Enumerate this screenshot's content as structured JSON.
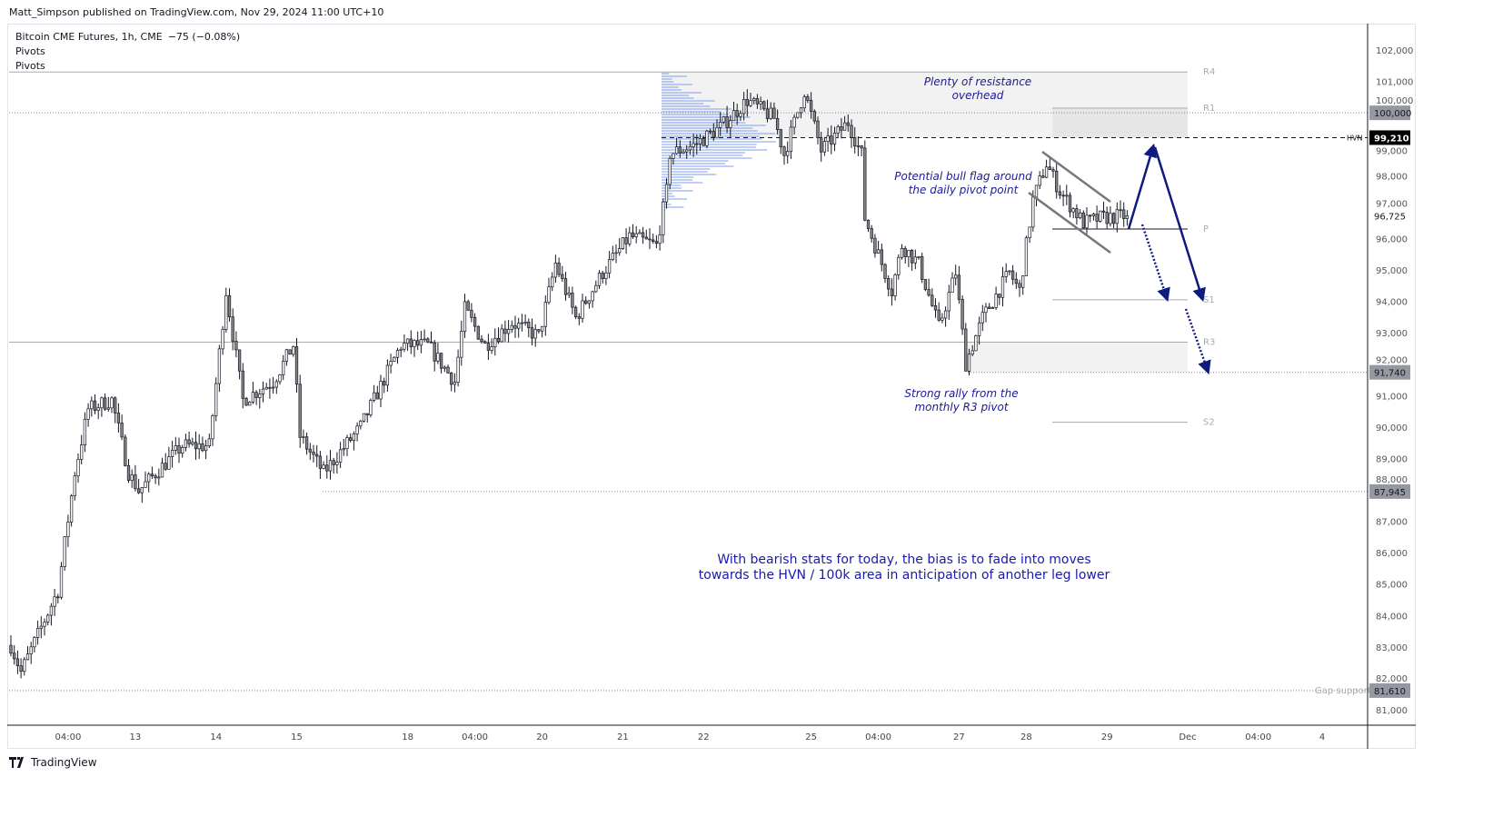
{
  "header": {
    "published": "Matt_Simpson published on TradingView.com, Nov 29, 2024 11:00 UTC+10",
    "symbol": "Bitcoin CME Futures, 1h, CME",
    "change": "−75 (−0.08%)",
    "indicators": [
      "Pivots",
      "Pivots"
    ]
  },
  "footer": {
    "logo_text": "TradingView"
  },
  "colors": {
    "annotation": "#1a1aaa",
    "arrow": "#0d1a80",
    "profile": "#8aa5ee",
    "zone": "#f2f2f2"
  },
  "chart_data": {
    "type": "candlestick",
    "title": "Bitcoin CME Futures, 1h, CME",
    "ylim": [
      80500,
      102700
    ],
    "y_ticks": [
      102000,
      101000,
      100000,
      99000,
      98000,
      97000,
      96000,
      95000,
      94000,
      93000,
      92000,
      91000,
      90000,
      89000,
      88000,
      87000,
      86000,
      85000,
      84000,
      83000,
      82000,
      81000
    ],
    "y_tick_labels": [
      "102,000",
      "101,000",
      "100,000",
      "99,000",
      "98,000",
      "97,000",
      "96,000",
      "95,000",
      "94,000",
      "93,000",
      "92,000",
      "91,000",
      "90,000",
      "89,000",
      "88,000",
      "87,000",
      "86,000",
      "85,000",
      "84,000",
      "83,000",
      "82,000",
      "81,000"
    ],
    "x_ticks": [
      {
        "bar": 17,
        "label": "04:00"
      },
      {
        "bar": 37,
        "label": "13"
      },
      {
        "bar": 61,
        "label": "14"
      },
      {
        "bar": 85,
        "label": "15"
      },
      {
        "bar": 118,
        "label": "18"
      },
      {
        "bar": 138,
        "label": "04:00"
      },
      {
        "bar": 158,
        "label": "20"
      },
      {
        "bar": 182,
        "label": "21"
      },
      {
        "bar": 206,
        "label": "22"
      },
      {
        "bar": 238,
        "label": "25"
      },
      {
        "bar": 258,
        "label": "04:00"
      },
      {
        "bar": 282,
        "label": "27"
      },
      {
        "bar": 302,
        "label": "28"
      },
      {
        "bar": 326,
        "label": "29"
      },
      {
        "bar": 350,
        "label": "Dec"
      },
      {
        "bar": 371,
        "label": "04:00"
      },
      {
        "bar": 390,
        "label": "4"
      }
    ],
    "close_path": [
      [
        0,
        83050
      ],
      [
        3,
        82200
      ],
      [
        14,
        84800
      ],
      [
        19,
        88550
      ],
      [
        23,
        90570
      ],
      [
        30,
        90860
      ],
      [
        35,
        88550
      ],
      [
        38,
        87970
      ],
      [
        51,
        89400
      ],
      [
        59,
        89400
      ],
      [
        64,
        94330
      ],
      [
        69,
        90860
      ],
      [
        78,
        91440
      ],
      [
        84,
        92600
      ],
      [
        86,
        89700
      ],
      [
        93,
        88550
      ],
      [
        104,
        90000
      ],
      [
        116,
        92600
      ],
      [
        124,
        92600
      ],
      [
        132,
        91440
      ],
      [
        135,
        93760
      ],
      [
        141,
        92600
      ],
      [
        149,
        93320
      ],
      [
        157,
        92890
      ],
      [
        162,
        95200
      ],
      [
        168,
        93470
      ],
      [
        176,
        94910
      ],
      [
        184,
        96070
      ],
      [
        192,
        95780
      ],
      [
        195,
        97500
      ],
      [
        196,
        98700
      ],
      [
        203,
        98960
      ],
      [
        211,
        99540
      ],
      [
        219,
        100400
      ],
      [
        227,
        99830
      ],
      [
        230,
        98670
      ],
      [
        236,
        100700
      ],
      [
        241,
        98800
      ],
      [
        249,
        99700
      ],
      [
        253,
        98670
      ],
      [
        254,
        96650
      ],
      [
        262,
        94330
      ],
      [
        265,
        95780
      ],
      [
        270,
        95200
      ],
      [
        276,
        93180
      ],
      [
        281,
        94910
      ],
      [
        284,
        92020
      ],
      [
        289,
        93470
      ],
      [
        297,
        94910
      ],
      [
        300,
        94330
      ],
      [
        304,
        97230
      ],
      [
        308,
        98380
      ],
      [
        312,
        97500
      ],
      [
        319,
        96500
      ],
      [
        324,
        96650
      ],
      [
        332,
        96725
      ]
    ],
    "levels": [
      {
        "name": "R4",
        "price": 101300,
        "label": "R4"
      },
      {
        "name": "R1",
        "price": 100150,
        "label": "R1"
      },
      {
        "name": "round",
        "price": 100000,
        "label": "100,000"
      },
      {
        "name": "HVN",
        "price": 99210,
        "label": "99,210",
        "tag": "HVN"
      },
      {
        "name": "last",
        "price": 96725,
        "label": "96,725"
      },
      {
        "name": "P",
        "price": 96300,
        "label": "P"
      },
      {
        "name": "S1",
        "price": 94050,
        "label": "S1"
      },
      {
        "name": "R3",
        "price": 92700,
        "label": "R3"
      },
      {
        "name": "low",
        "price": 91740,
        "label": "91,740"
      },
      {
        "name": "S2",
        "price": 90150,
        "label": "S2"
      },
      {
        "name": "swing",
        "price": 87945,
        "label": "87,945"
      },
      {
        "name": "gap",
        "price": 81610,
        "label": "81,610",
        "tag": "Gap support"
      }
    ],
    "annotations": {
      "resistance": [
        "Plenty of resistance",
        "overhead"
      ],
      "flag": [
        "Potential bull flag around",
        "the daily pivot point"
      ],
      "rally": [
        "Strong rally from the",
        "monthly R3 pivot"
      ],
      "bias": [
        "With bearish stats for today, the bias is to fade into moves",
        "towards the HVN / 100k area in anticipation of another leg lower"
      ]
    }
  }
}
